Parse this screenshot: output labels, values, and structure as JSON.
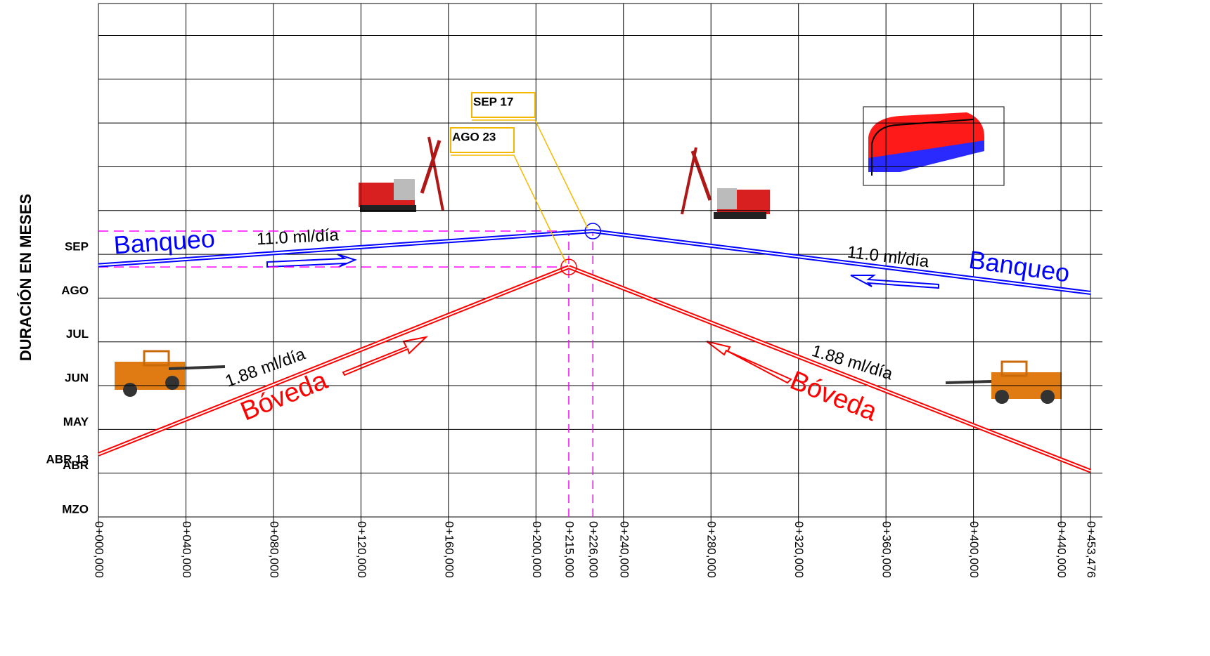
{
  "chart_data": {
    "type": "line",
    "y_label": "DURACIÓN EN MESES",
    "xlim": [
      0,
      453476
    ],
    "ylim": [
      3,
      14.73
    ],
    "xticks": [
      {
        "value": 0,
        "label": "0+000,000"
      },
      {
        "value": 40000,
        "label": "0+040,000"
      },
      {
        "value": 80000,
        "label": "0+080,000"
      },
      {
        "value": 120000,
        "label": "0+120,000"
      },
      {
        "value": 160000,
        "label": "0+160,000"
      },
      {
        "value": 200000,
        "label": "0+200,000"
      },
      {
        "value": 215000,
        "label": "0+215,000"
      },
      {
        "value": 226000,
        "label": "0+226,000"
      },
      {
        "value": 240000,
        "label": "0+240,000"
      },
      {
        "value": 280000,
        "label": "0+280,000"
      },
      {
        "value": 320000,
        "label": "0+320,000"
      },
      {
        "value": 360000,
        "label": "0+360,000"
      },
      {
        "value": 400000,
        "label": "0+400,000"
      },
      {
        "value": 440000,
        "label": "0+440,000"
      },
      {
        "value": 453476,
        "label": "0+453,476"
      }
    ],
    "yticks": [
      {
        "value": 3,
        "label": "MZO"
      },
      {
        "value": 4,
        "label": "ABR"
      },
      {
        "value": 4.43,
        "label": "ABR 13"
      },
      {
        "value": 5,
        "label": "MAY"
      },
      {
        "value": 6,
        "label": "JUN"
      },
      {
        "value": 7,
        "label": "JUL"
      },
      {
        "value": 8,
        "label": "AGO"
      },
      {
        "value": 9,
        "label": "SEP"
      }
    ],
    "ygrid_lines": [
      10,
      11,
      12,
      13,
      14
    ],
    "grid": true,
    "series": [
      {
        "name": "Bóveda",
        "color": "#ff0000",
        "x": [
          0,
          215000
        ],
        "values": [
          4.43,
          8.71
        ]
      },
      {
        "name": "Bóveda",
        "color": "#ff0000",
        "x": [
          215000,
          453476
        ],
        "values": [
          8.71,
          4.05
        ]
      },
      {
        "name": "Banqueo",
        "color": "#0000ff",
        "x": [
          0,
          226000
        ],
        "values": [
          8.75,
          9.53
        ]
      },
      {
        "name": "Banqueo",
        "color": "#0000ff",
        "x": [
          226000,
          453476
        ],
        "values": [
          9.53,
          8.12
        ]
      }
    ],
    "annotations": [
      "SEP 17",
      "AGO 23",
      "11.0 ml/día",
      "11.0 ml/día",
      "1.88 ml/día",
      "1.88 ml/día"
    ]
  }
}
